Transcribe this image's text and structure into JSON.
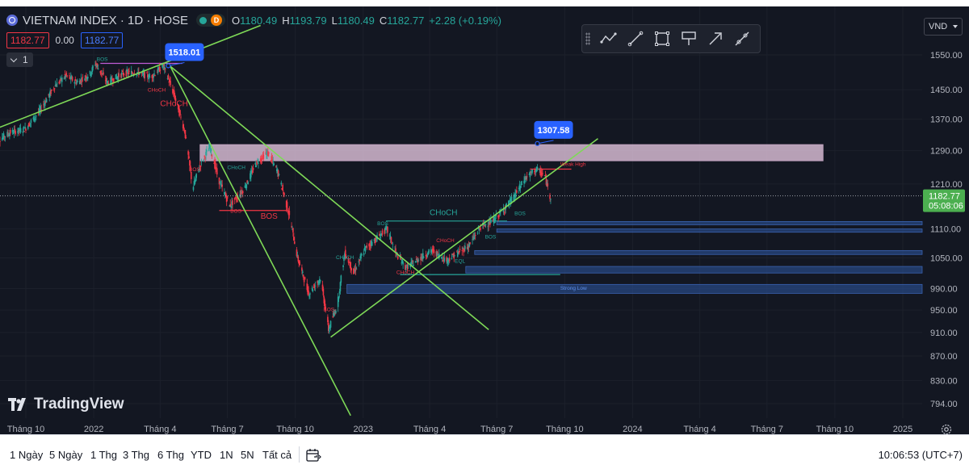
{
  "symbol": {
    "title": "VIETNAM INDEX · 1D · HOSE",
    "market_badge": "D",
    "ohlc": [
      {
        "k": "O",
        "v": "1180.49"
      },
      {
        "k": "H",
        "v": "1193.79"
      },
      {
        "k": "L",
        "v": "1180.49"
      },
      {
        "k": "C",
        "v": "1182.77"
      }
    ],
    "change": "+2.28 (+0.19%)"
  },
  "trade": {
    "bid": "1182.77",
    "spread": "0.00",
    "ask": "1182.77"
  },
  "indicators": {
    "count": "1"
  },
  "currency": "VND",
  "toolbar": {
    "buttons": [
      {
        "name": "path-tool-button",
        "icon": "polyline-icon"
      },
      {
        "name": "trend-line-button",
        "icon": "trend-line-icon"
      },
      {
        "name": "rectangle-tool-button",
        "icon": "rectangle-icon"
      },
      {
        "name": "text-note-button",
        "icon": "note-icon"
      },
      {
        "name": "arrow-tool-button",
        "icon": "arrow-icon"
      },
      {
        "name": "ray-tool-button",
        "icon": "ray-icon"
      }
    ]
  },
  "branding": {
    "logo_text": "TradingView"
  },
  "colors": {
    "background": "#131722",
    "up": "#26a69a",
    "down": "#f23645",
    "trendline": "#7ed957",
    "zone_pink": "#e6c6e0",
    "zone_blue": "#2a4d8f",
    "price_tag": "#4caf50",
    "callout": "#2962ff"
  },
  "chart_data": {
    "type": "candlestick",
    "x_axis": {
      "ticks": [
        {
          "label": "Tháng 10",
          "date": "2021-10-01"
        },
        {
          "label": "2022",
          "date": "2022-01-01"
        },
        {
          "label": "Tháng 4",
          "date": "2022-04-01"
        },
        {
          "label": "Tháng 7",
          "date": "2022-07-01"
        },
        {
          "label": "Tháng 10",
          "date": "2022-10-01"
        },
        {
          "label": "2023",
          "date": "2023-01-01"
        },
        {
          "label": "Tháng 4",
          "date": "2023-04-01"
        },
        {
          "label": "Tháng 7",
          "date": "2023-07-01"
        },
        {
          "label": "Tháng 10",
          "date": "2023-10-01"
        },
        {
          "label": "2024",
          "date": "2024-01-01"
        },
        {
          "label": "Tháng 4",
          "date": "2024-04-01"
        },
        {
          "label": "Tháng 7",
          "date": "2024-07-01"
        },
        {
          "label": "Tháng 10",
          "date": "2024-10-01"
        },
        {
          "label": "2025",
          "date": "2025-01-01"
        }
      ]
    },
    "y_axis": {
      "scale": "log",
      "range": [
        776,
        1620
      ],
      "ticks": [
        "1550.00",
        "1450.00",
        "1370.00",
        "1290.00",
        "1210.00",
        "1110.00",
        "1050.00",
        "990.00",
        "950.00",
        "910.00",
        "870.00",
        "830.00",
        "794.00"
      ]
    },
    "last_price": {
      "value": 1182.77,
      "label": "1182.77",
      "countdown": "05:08:06"
    },
    "callouts": [
      {
        "label": "1518.01",
        "date": "2022-04-12",
        "value": 1518.01
      },
      {
        "label": "1307.58",
        "date": "2023-08-25",
        "value": 1307.58
      }
    ],
    "price_path": [
      [
        "2021-08-20",
        1310
      ],
      [
        "2021-09-10",
        1335
      ],
      [
        "2021-10-01",
        1345
      ],
      [
        "2021-10-20",
        1390
      ],
      [
        "2021-11-10",
        1460
      ],
      [
        "2021-11-25",
        1490
      ],
      [
        "2021-12-10",
        1470
      ],
      [
        "2021-12-28",
        1495
      ],
      [
        "2022-01-04",
        1525
      ],
      [
        "2022-01-20",
        1470
      ],
      [
        "2022-02-10",
        1495
      ],
      [
        "2022-03-01",
        1500
      ],
      [
        "2022-03-20",
        1485
      ],
      [
        "2022-04-06",
        1518
      ],
      [
        "2022-04-20",
        1440
      ],
      [
        "2022-05-05",
        1340
      ],
      [
        "2022-05-16",
        1200
      ],
      [
        "2022-05-25",
        1250
      ],
      [
        "2022-06-08",
        1300
      ],
      [
        "2022-06-20",
        1220
      ],
      [
        "2022-07-05",
        1160
      ],
      [
        "2022-07-25",
        1200
      ],
      [
        "2022-08-10",
        1260
      ],
      [
        "2022-08-25",
        1285
      ],
      [
        "2022-09-08",
        1240
      ],
      [
        "2022-09-25",
        1130
      ],
      [
        "2022-10-05",
        1050
      ],
      [
        "2022-10-20",
        980
      ],
      [
        "2022-11-05",
        1010
      ],
      [
        "2022-11-16",
        915
      ],
      [
        "2022-11-28",
        960
      ],
      [
        "2022-12-08",
        1060
      ],
      [
        "2022-12-20",
        1020
      ],
      [
        "2023-01-05",
        1070
      ],
      [
        "2023-01-20",
        1090
      ],
      [
        "2023-02-03",
        1110
      ],
      [
        "2023-02-15",
        1060
      ],
      [
        "2023-03-01",
        1030
      ],
      [
        "2023-03-20",
        1050
      ],
      [
        "2023-04-05",
        1065
      ],
      [
        "2023-04-25",
        1045
      ],
      [
        "2023-05-10",
        1060
      ],
      [
        "2023-05-25",
        1075
      ],
      [
        "2023-06-10",
        1115
      ],
      [
        "2023-06-25",
        1125
      ],
      [
        "2023-07-10",
        1150
      ],
      [
        "2023-07-25",
        1180
      ],
      [
        "2023-08-10",
        1225
      ],
      [
        "2023-08-25",
        1245
      ],
      [
        "2023-09-05",
        1228
      ],
      [
        "2023-09-12",
        1182
      ]
    ],
    "trendlines": [
      {
        "from": [
          "2021-08-01",
          1330
        ],
        "to": [
          "2022-08-15",
          1640
        ]
      },
      {
        "from": [
          "2022-04-10",
          1525
        ],
        "to": [
          "2023-06-20",
          915
        ]
      },
      {
        "from": [
          "2022-04-15",
          1515
        ],
        "to": [
          "2022-12-15",
          776
        ]
      },
      {
        "from": [
          "2022-11-18",
          902
        ],
        "to": [
          "2023-11-15",
          1320
        ]
      }
    ],
    "zones": [
      {
        "from": "2022-05-25",
        "to": "2024-09-15",
        "low": 1265,
        "high": 1305,
        "color": "pink"
      },
      {
        "from": "2023-07-01",
        "to": "2025-01-31",
        "low": 1119,
        "high": 1126,
        "color": "blue"
      },
      {
        "from": "2023-07-01",
        "to": "2025-01-31",
        "low": 1103,
        "high": 1110,
        "color": "blue"
      },
      {
        "from": "2023-06-01",
        "to": "2025-01-31",
        "low": 1057,
        "high": 1065,
        "color": "blue"
      },
      {
        "from": "2023-05-20",
        "to": "2025-01-31",
        "low": 1020,
        "high": 1033,
        "color": "blue"
      },
      {
        "from": "2022-12-10",
        "to": "2025-01-31",
        "low": 981,
        "high": 998,
        "color": "blue"
      }
    ],
    "structure_lines": [
      {
        "from": "2022-01-10",
        "to": "2022-05-01",
        "value": 1525,
        "color": "violet"
      },
      {
        "from": "2022-06-20",
        "to": "2022-09-20",
        "value": 1150,
        "color": "red"
      },
      {
        "from": "2023-02-01",
        "to": "2023-07-15",
        "value": 1127,
        "color": "green"
      },
      {
        "from": "2023-02-20",
        "to": "2023-09-25",
        "value": 1017,
        "color": "green"
      },
      {
        "from": "2023-08-15",
        "to": "2023-10-10",
        "value": 1245,
        "color": "red"
      }
    ],
    "annotations": [
      {
        "text": "BOS",
        "date": "2022-01-05",
        "value": 1532,
        "color": "green",
        "size": "small"
      },
      {
        "text": "CHoCH",
        "date": "2022-03-15",
        "value": 1445,
        "color": "red",
        "size": "small"
      },
      {
        "text": "CHoCH",
        "date": "2022-04-01",
        "value": 1405,
        "color": "red",
        "size": "large"
      },
      {
        "text": "BOS",
        "date": "2022-05-10",
        "value": 1240,
        "color": "red",
        "size": "small"
      },
      {
        "text": "CHoCH",
        "date": "2022-07-01",
        "value": 1245,
        "color": "green",
        "size": "small"
      },
      {
        "text": "BOS",
        "date": "2022-07-05",
        "value": 1145,
        "color": "red",
        "size": "small"
      },
      {
        "text": "BOS",
        "date": "2022-08-15",
        "value": 1132,
        "color": "red",
        "size": "large"
      },
      {
        "text": "CHoCH",
        "date": "2022-11-25",
        "value": 1048,
        "color": "green",
        "size": "small"
      },
      {
        "text": "BOS",
        "date": "2022-11-08",
        "value": 948,
        "color": "red",
        "size": "small"
      },
      {
        "text": "BOS",
        "date": "2023-01-20",
        "value": 1118,
        "color": "green",
        "size": "small"
      },
      {
        "text": "CHoCH",
        "date": "2023-04-01",
        "value": 1140,
        "color": "green",
        "size": "large"
      },
      {
        "text": "CHoCH",
        "date": "2023-04-10",
        "value": 1082,
        "color": "red",
        "size": "small"
      },
      {
        "text": "CHoCH",
        "date": "2023-02-15",
        "value": 1018,
        "color": "red",
        "size": "small"
      },
      {
        "text": "EQL",
        "date": "2023-05-05",
        "value": 1040,
        "color": "green",
        "size": "small"
      },
      {
        "text": "BOS",
        "date": "2023-06-15",
        "value": 1090,
        "color": "green",
        "size": "small"
      },
      {
        "text": "BOS",
        "date": "2023-07-25",
        "value": 1140,
        "color": "green",
        "size": "small"
      },
      {
        "text": "Strong Low",
        "date": "2023-09-25",
        "value": 988,
        "color": "blue",
        "size": "small"
      },
      {
        "text": "Weak High",
        "date": "2023-09-25",
        "value": 1253,
        "color": "red",
        "size": "small"
      }
    ]
  },
  "bottom_bar": {
    "ranges": [
      {
        "name": "range-1d",
        "label": "1 Ngày"
      },
      {
        "name": "range-5d",
        "label": "5 Ngày"
      },
      {
        "name": "range-1m",
        "label": "1 Thg"
      },
      {
        "name": "range-3m",
        "label": "3 Thg"
      },
      {
        "name": "range-6m",
        "label": "6 Thg"
      },
      {
        "name": "range-ytd",
        "label": "YTD"
      },
      {
        "name": "range-1y",
        "label": "1N"
      },
      {
        "name": "range-5y",
        "label": "5N"
      },
      {
        "name": "range-all",
        "label": "Tất cả"
      }
    ],
    "clock": "10:06:53 (UTC+7)"
  }
}
